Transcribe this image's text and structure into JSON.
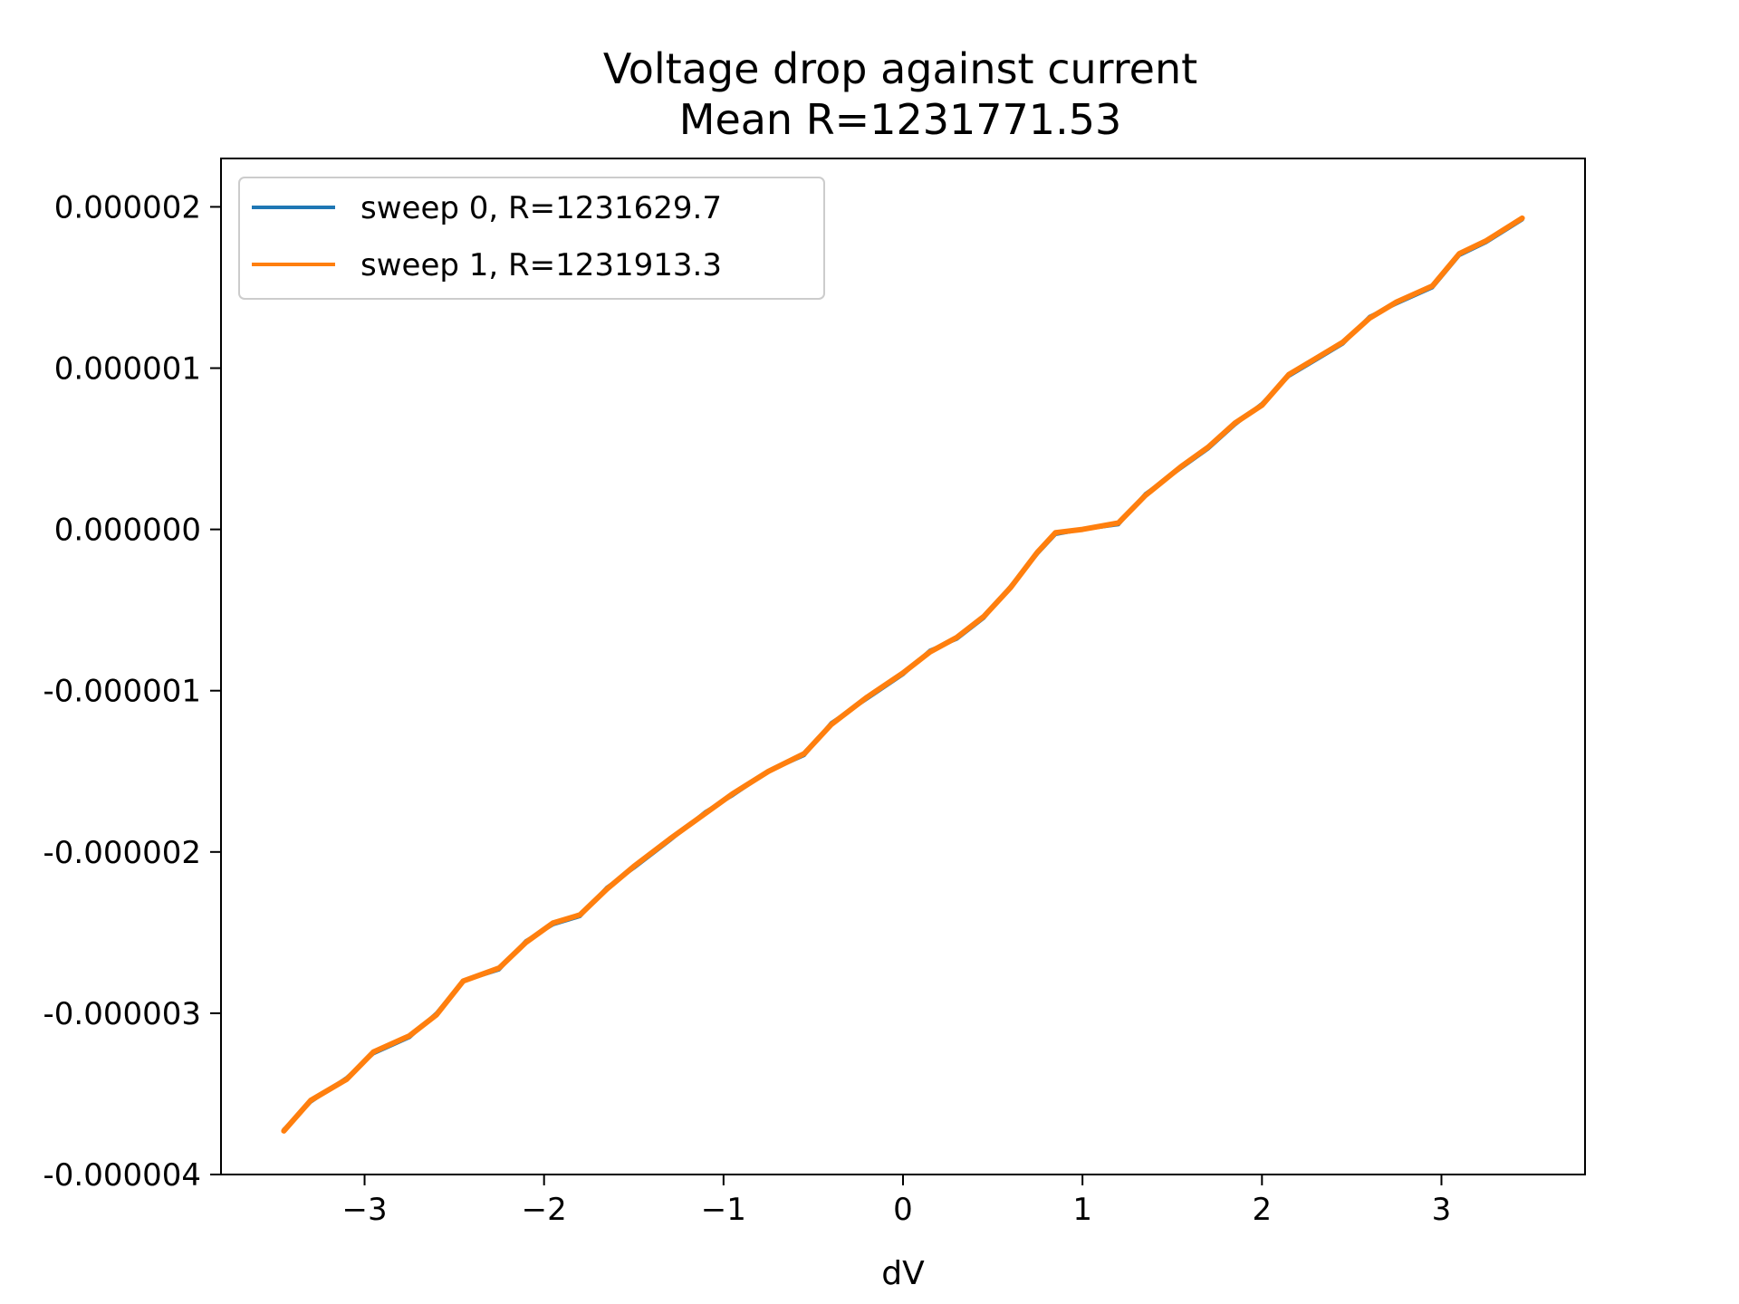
{
  "chart_data": {
    "type": "line",
    "title": "Voltage drop against current",
    "subtitle": "Mean R=1231771.53",
    "xlabel": "dV",
    "ylabel": "",
    "xlim": [
      -3.8,
      3.8
    ],
    "ylim": [
      -4e-06,
      2.3e-06
    ],
    "x_ticks": [
      -3,
      -2,
      -1,
      0,
      1,
      2,
      3
    ],
    "x_tick_labels": [
      "−3",
      "−2",
      "−1",
      "0",
      "1",
      "2",
      "3"
    ],
    "y_ticks": [
      -4e-06,
      -3e-06,
      -2e-06,
      -1e-06,
      0,
      1e-06,
      2e-06
    ],
    "y_tick_labels": [
      "-0.000004",
      "-0.000003",
      "-0.000002",
      "-0.000001",
      "0.000000",
      "0.000001",
      "0.000002"
    ],
    "grid": false,
    "legend_position": "top-left",
    "series": [
      {
        "name": "sweep 0, R=1231629.7",
        "color": "#1f77b4",
        "x": [
          -3.45,
          -3.3,
          -3.1,
          -2.95,
          -2.75,
          -2.6,
          -2.45,
          -2.25,
          -2.1,
          -1.95,
          -1.8,
          -1.65,
          -1.5,
          -1.3,
          -1.1,
          -0.95,
          -0.75,
          -0.55,
          -0.4,
          -0.2,
          0,
          0.15,
          0.3,
          0.45,
          0.6,
          0.75,
          0.85,
          1.0,
          1.2,
          1.35,
          1.55,
          1.7,
          1.85,
          2.0,
          2.15,
          2.3,
          2.45,
          2.6,
          2.75,
          2.95,
          3.1,
          3.25,
          3.45
        ],
        "y": [
          -3.72e-06,
          -3.55e-06,
          -3.4e-06,
          -3.25e-06,
          -3.15e-06,
          -3e-06,
          -2.8e-06,
          -2.73e-06,
          -2.55e-06,
          -2.45e-06,
          -2.4e-06,
          -2.22e-06,
          -2.1e-06,
          -1.93e-06,
          -1.75e-06,
          -1.65e-06,
          -1.5e-06,
          -1.4e-06,
          -1.2e-06,
          -1.05e-06,
          -9e-07,
          -7.5e-07,
          -6.8e-07,
          -5.5e-07,
          -3.5e-07,
          -1.5e-07,
          -3e-08,
          0.0,
          3e-08,
          2.2e-07,
          3.8e-07,
          5e-07,
          6.5e-07,
          7.8e-07,
          9.5e-07,
          1.05e-06,
          1.15e-06,
          1.32e-06,
          1.4e-06,
          1.5e-06,
          1.7e-06,
          1.78e-06,
          1.92e-06
        ]
      },
      {
        "name": "sweep 1, R=1231913.3",
        "color": "#ff7f0e",
        "x": [
          -3.45,
          -3.3,
          -3.1,
          -2.95,
          -2.75,
          -2.6,
          -2.45,
          -2.25,
          -2.1,
          -1.95,
          -1.8,
          -1.65,
          -1.5,
          -1.3,
          -1.1,
          -0.95,
          -0.75,
          -0.55,
          -0.4,
          -0.2,
          0,
          0.15,
          0.3,
          0.45,
          0.6,
          0.75,
          0.85,
          1.0,
          1.2,
          1.35,
          1.55,
          1.7,
          1.85,
          2.0,
          2.15,
          2.3,
          2.45,
          2.6,
          2.75,
          2.95,
          3.1,
          3.25,
          3.45
        ],
        "y": [
          -3.73e-06,
          -3.54e-06,
          -3.41e-06,
          -3.24e-06,
          -3.14e-06,
          -3.01e-06,
          -2.8e-06,
          -2.72e-06,
          -2.56e-06,
          -2.44e-06,
          -2.39e-06,
          -2.23e-06,
          -2.09e-06,
          -1.92e-06,
          -1.76e-06,
          -1.64e-06,
          -1.5e-06,
          -1.39e-06,
          -1.21e-06,
          -1.04e-06,
          -8.9e-07,
          -7.6e-07,
          -6.7e-07,
          -5.4e-07,
          -3.6e-07,
          -1.4e-07,
          -2e-08,
          0.0,
          4e-08,
          2.1e-07,
          3.9e-07,
          5.1e-07,
          6.6e-07,
          7.7e-07,
          9.6e-07,
          1.06e-06,
          1.16e-06,
          1.31e-06,
          1.41e-06,
          1.51e-06,
          1.71e-06,
          1.79e-06,
          1.93e-06
        ]
      }
    ]
  }
}
